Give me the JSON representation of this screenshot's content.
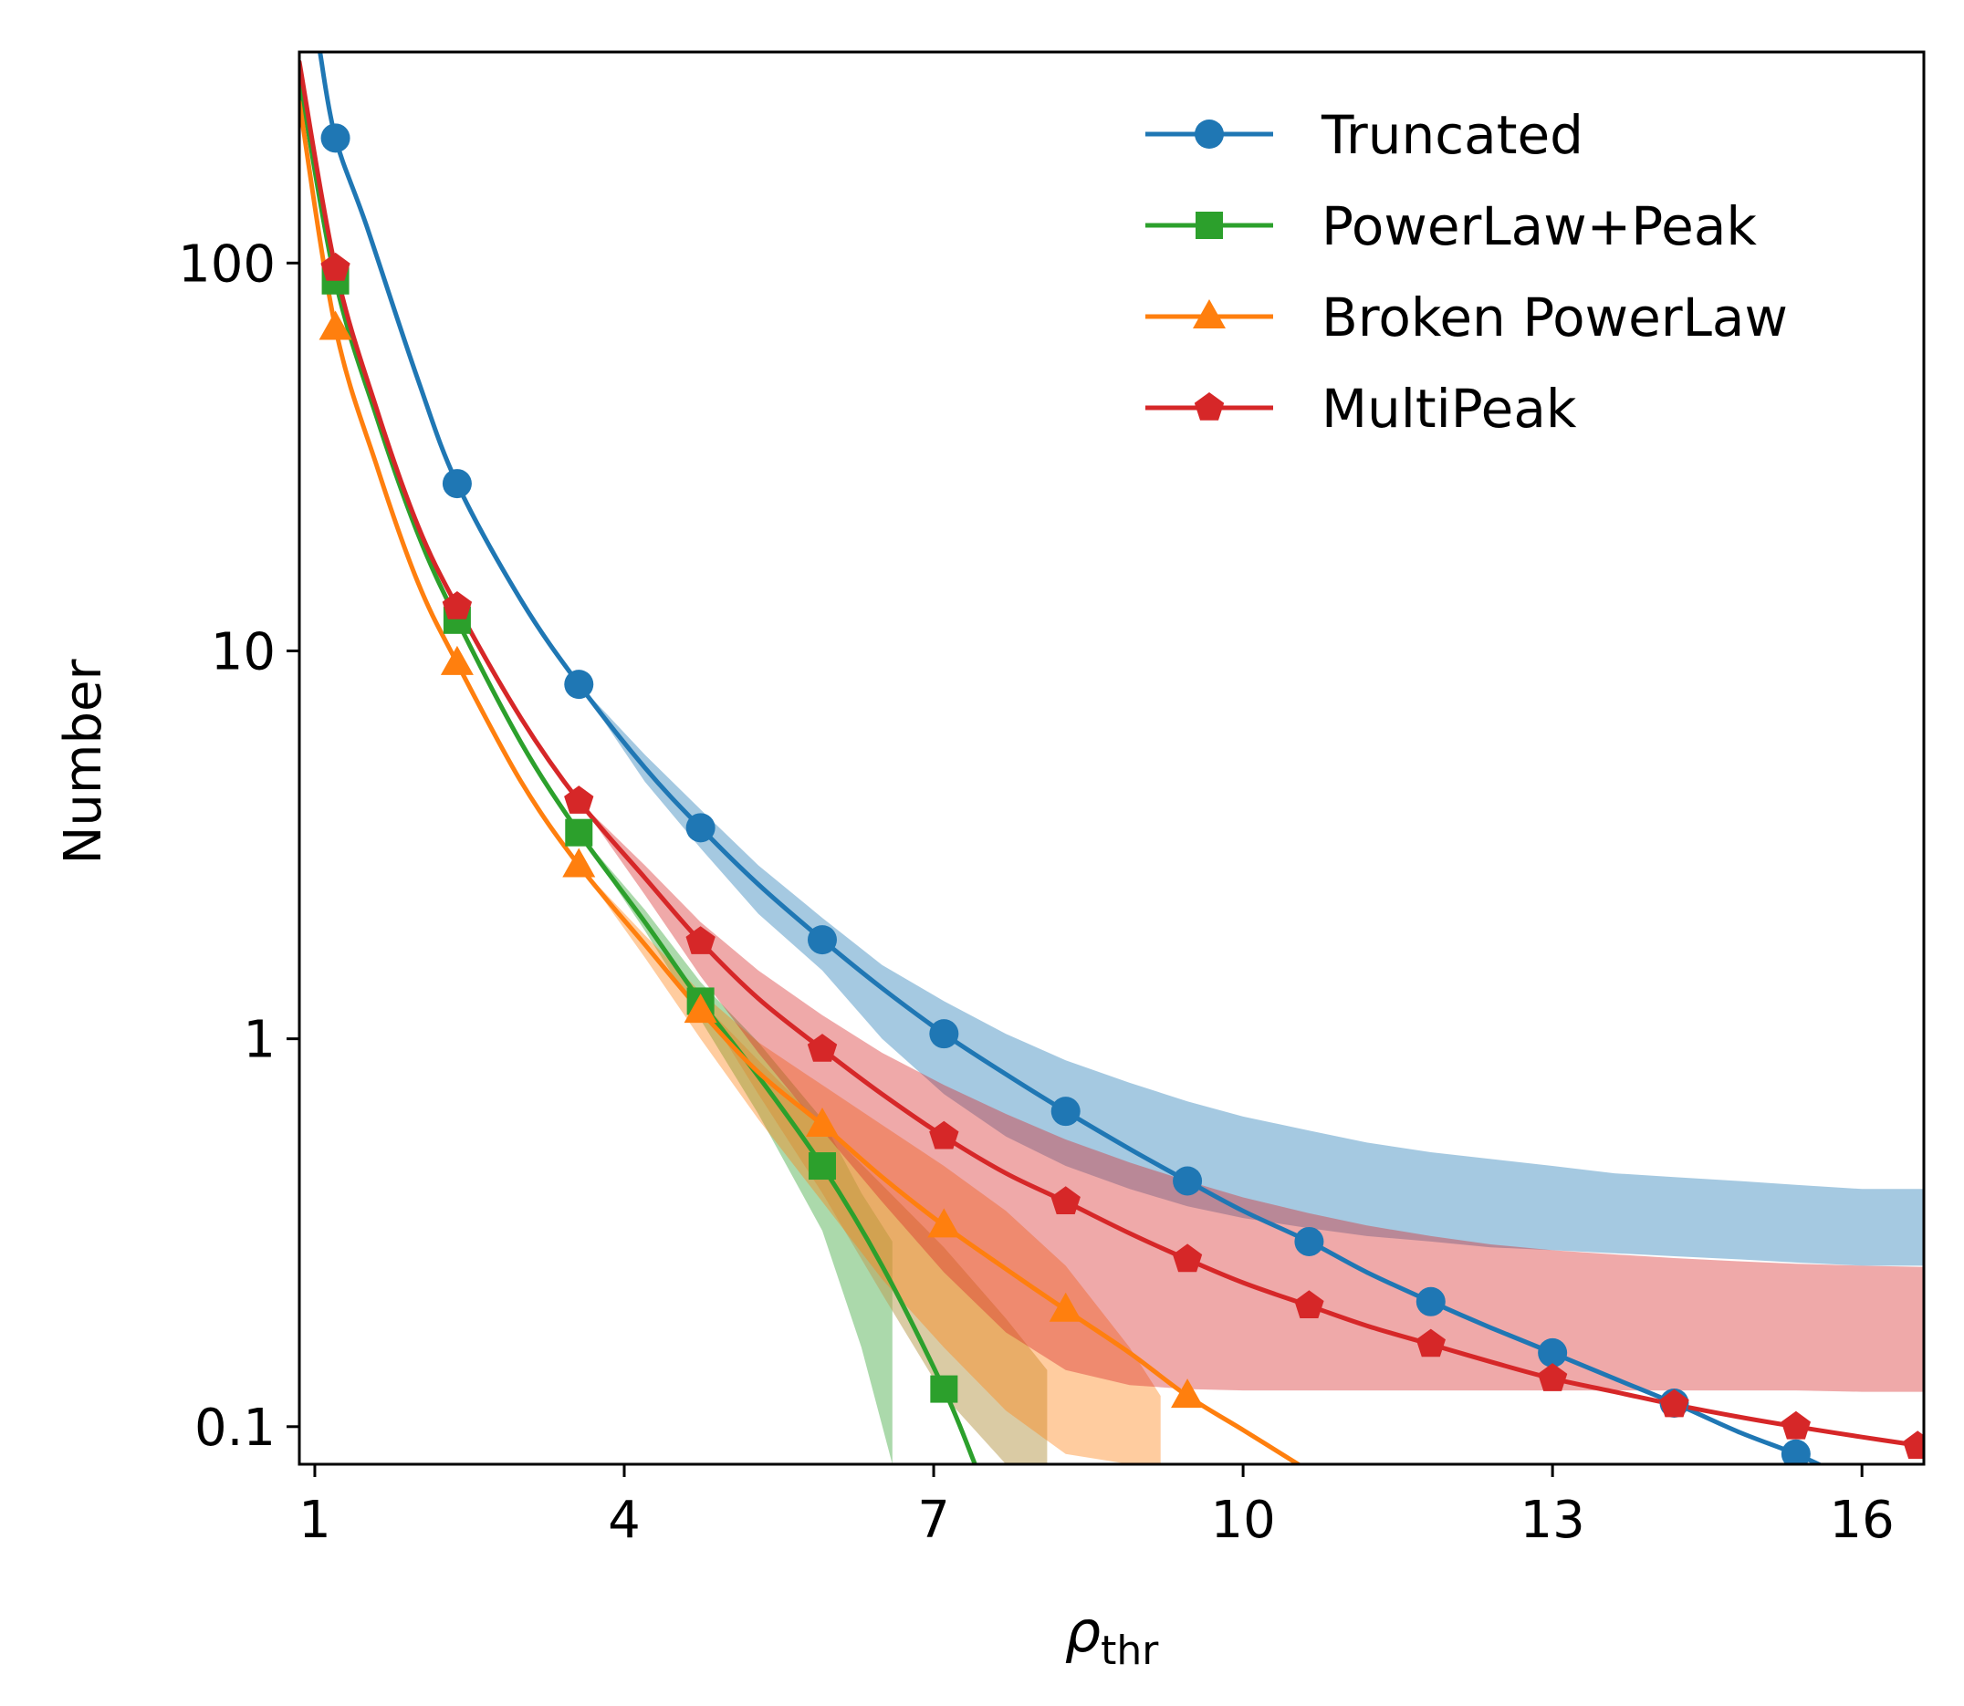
{
  "chart_data": {
    "type": "line",
    "title": "",
    "xlabel": "ρ",
    "xlabel_subscript": "thr",
    "ylabel": "Number",
    "xscale": "linear",
    "yscale": "log",
    "xlim": [
      0.85,
      16.6
    ],
    "ylim": [
      0.08,
      350
    ],
    "xticks": [
      1,
      4,
      7,
      10,
      13,
      16
    ],
    "xtick_labels": [
      "1",
      "4",
      "7",
      "10",
      "13",
      "16"
    ],
    "yticks": [
      0.1,
      1,
      10,
      100
    ],
    "ytick_labels": [
      "0.1",
      "1",
      "10",
      "100"
    ],
    "legend_position": "top-right",
    "grid": false,
    "series": [
      {
        "name": "Truncated",
        "color": "#1f77b4",
        "marker": "circle",
        "x": [
          1.2,
          2.38,
          3.56,
          4.74,
          5.92,
          7.1,
          8.28,
          9.46,
          10.64,
          11.82,
          13.0,
          14.18,
          15.36
        ],
        "y": [
          210,
          27,
          8.2,
          3.5,
          1.8,
          1.03,
          0.65,
          0.43,
          0.3,
          0.21,
          0.155,
          0.115,
          0.085
        ],
        "line_x": [
          1.05,
          1.2,
          1.5,
          2.0,
          2.38,
          3.0,
          3.56,
          4.2,
          4.74,
          5.3,
          5.92,
          6.5,
          7.1,
          7.7,
          8.28,
          8.9,
          9.46,
          10.0,
          10.64,
          11.2,
          11.82,
          12.4,
          13.0,
          13.6,
          14.18,
          14.8,
          15.36,
          15.8
        ],
        "line_y": [
          350,
          210,
          125,
          50,
          27,
          13.5,
          8.2,
          5.0,
          3.5,
          2.5,
          1.8,
          1.35,
          1.03,
          0.81,
          0.65,
          0.52,
          0.43,
          0.36,
          0.3,
          0.25,
          0.21,
          0.18,
          0.155,
          0.133,
          0.115,
          0.097,
          0.085,
          0.075
        ],
        "band_x": [
          3.56,
          4.2,
          4.74,
          5.3,
          5.92,
          6.5,
          7.1,
          7.7,
          8.28,
          8.9,
          9.46,
          10.0,
          10.64,
          11.2,
          11.82,
          12.4,
          13.0,
          13.6,
          14.18,
          14.8,
          15.36,
          16.0,
          16.6
        ],
        "band_upper": [
          8.2,
          5.4,
          3.9,
          2.8,
          2.05,
          1.55,
          1.25,
          1.03,
          0.88,
          0.77,
          0.69,
          0.63,
          0.58,
          0.54,
          0.51,
          0.49,
          0.47,
          0.45,
          0.44,
          0.43,
          0.42,
          0.41,
          0.41
        ],
        "band_lower": [
          8.2,
          4.6,
          3.1,
          2.1,
          1.5,
          1.0,
          0.72,
          0.56,
          0.47,
          0.41,
          0.37,
          0.345,
          0.325,
          0.31,
          0.3,
          0.29,
          0.285,
          0.28,
          0.275,
          0.27,
          0.265,
          0.26,
          0.26
        ]
      },
      {
        "name": "PowerLaw+Peak",
        "color": "#2ca02c",
        "marker": "square",
        "x": [
          1.2,
          2.38,
          3.56,
          4.74,
          5.92,
          7.1
        ],
        "y": [
          90,
          12,
          3.4,
          1.25,
          0.47,
          0.125
        ],
        "line_x": [
          0.85,
          1.2,
          1.6,
          2.0,
          2.38,
          3.0,
          3.56,
          4.2,
          4.74,
          5.3,
          5.92,
          6.5,
          7.1,
          7.4
        ],
        "line_y": [
          300,
          90,
          40,
          20,
          12,
          5.8,
          3.4,
          2.0,
          1.25,
          0.8,
          0.47,
          0.26,
          0.125,
          0.08
        ],
        "band_x": [
          3.56,
          4.2,
          4.74,
          5.3,
          5.92,
          6.3,
          6.6
        ],
        "band_upper": [
          3.4,
          2.15,
          1.4,
          0.98,
          0.62,
          0.4,
          0.3
        ],
        "band_lower": [
          3.4,
          1.9,
          1.12,
          0.64,
          0.32,
          0.16,
          0.08
        ],
        "band2_x": [
          4.74,
          5.3,
          5.92,
          6.5,
          7.1,
          7.7,
          8.1
        ],
        "band2_upper": [
          1.25,
          0.88,
          0.6,
          0.42,
          0.29,
          0.19,
          0.14
        ],
        "band2_lower": [
          1.25,
          0.72,
          0.4,
          0.22,
          0.12,
          0.08,
          0.08
        ]
      },
      {
        "name": "Broken PowerLaw",
        "color": "#ff7f0e",
        "marker": "triangle",
        "x": [
          1.2,
          2.38,
          3.56,
          4.74,
          5.92,
          7.1,
          8.28,
          9.46
        ],
        "y": [
          68,
          9.3,
          2.8,
          1.18,
          0.6,
          0.33,
          0.2,
          0.12
        ],
        "line_x": [
          0.85,
          1.2,
          1.6,
          2.0,
          2.38,
          3.0,
          3.56,
          4.2,
          4.74,
          5.3,
          5.92,
          6.5,
          7.1,
          7.7,
          8.28,
          8.9,
          9.46,
          10.0,
          10.6
        ],
        "line_y": [
          260,
          68,
          30,
          15,
          9.3,
          4.6,
          2.8,
          1.75,
          1.18,
          0.82,
          0.6,
          0.44,
          0.33,
          0.255,
          0.2,
          0.155,
          0.12,
          0.098,
          0.078
        ],
        "band_x": [
          3.56,
          4.2,
          4.74,
          5.3,
          5.92,
          6.5,
          7.1,
          7.7,
          8.28,
          8.9,
          9.2
        ],
        "band_upper": [
          2.8,
          1.85,
          1.32,
          0.98,
          0.76,
          0.6,
          0.47,
          0.36,
          0.26,
          0.16,
          0.12
        ],
        "band_lower": [
          2.8,
          1.62,
          1.0,
          0.62,
          0.38,
          0.24,
          0.16,
          0.11,
          0.085,
          0.08,
          0.08
        ]
      },
      {
        "name": "MultiPeak",
        "color": "#d62728",
        "marker": "pentagon",
        "x": [
          1.2,
          2.38,
          3.56,
          4.74,
          5.92,
          7.1,
          8.28,
          9.46,
          10.64,
          11.82,
          13.0,
          14.18,
          15.36,
          16.54
        ],
        "y": [
          97,
          13,
          4.1,
          1.78,
          0.94,
          0.56,
          0.38,
          0.27,
          0.205,
          0.163,
          0.133,
          0.114,
          0.1,
          0.089
        ],
        "line_x": [
          0.85,
          1.2,
          1.6,
          2.0,
          2.38,
          3.0,
          3.56,
          4.2,
          4.74,
          5.3,
          5.92,
          6.5,
          7.1,
          7.7,
          8.28,
          8.9,
          9.46,
          10.0,
          10.64,
          11.2,
          11.82,
          12.4,
          13.0,
          13.6,
          14.18,
          14.8,
          15.36,
          16.0,
          16.6
        ],
        "line_y": [
          330,
          97,
          42,
          21,
          13,
          6.7,
          4.1,
          2.6,
          1.78,
          1.27,
          0.94,
          0.72,
          0.56,
          0.45,
          0.38,
          0.315,
          0.27,
          0.235,
          0.205,
          0.182,
          0.163,
          0.147,
          0.133,
          0.123,
          0.114,
          0.106,
          0.1,
          0.094,
          0.089
        ],
        "band_x": [
          3.56,
          4.2,
          4.74,
          5.3,
          5.92,
          6.5,
          7.1,
          7.7,
          8.28,
          8.9,
          9.46,
          10.0,
          10.64,
          11.2,
          11.82,
          12.4,
          13.0,
          13.6,
          14.18,
          14.8,
          15.36,
          16.0,
          16.6
        ],
        "band_upper": [
          4.1,
          2.8,
          2.0,
          1.5,
          1.15,
          0.92,
          0.76,
          0.64,
          0.55,
          0.48,
          0.43,
          0.39,
          0.355,
          0.33,
          0.31,
          0.295,
          0.285,
          0.278,
          0.272,
          0.267,
          0.263,
          0.26,
          0.258
        ],
        "band_lower": [
          4.1,
          2.35,
          1.45,
          0.92,
          0.58,
          0.38,
          0.25,
          0.175,
          0.14,
          0.128,
          0.125,
          0.124,
          0.124,
          0.124,
          0.124,
          0.124,
          0.124,
          0.124,
          0.124,
          0.124,
          0.124,
          0.123,
          0.123
        ]
      }
    ]
  }
}
